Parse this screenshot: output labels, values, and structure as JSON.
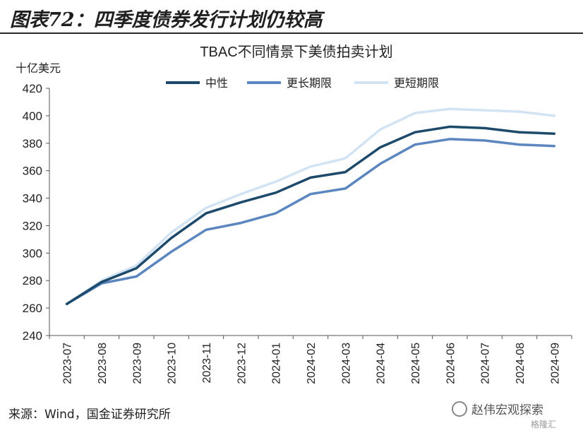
{
  "figure": {
    "title": "图表72：四季度债券发行计划仍较高",
    "source": "来源：Wind，国金证券研究所",
    "watermark": "赵伟宏观探索",
    "watermark_sub": "格隆汇"
  },
  "chart_data": {
    "type": "line",
    "title": "TBAC不同情景下美债拍卖计划",
    "ylabel": "十亿美元",
    "xlabel": "",
    "ylim": [
      240,
      420
    ],
    "yticks": [
      240,
      260,
      280,
      300,
      320,
      340,
      360,
      380,
      400,
      420
    ],
    "grid": false,
    "legend_position": "top",
    "categories": [
      "2023-07",
      "2023-08",
      "2023-09",
      "2023-10",
      "2023-11",
      "2023-12",
      "2024-01",
      "2024-02",
      "2024-03",
      "2024-04",
      "2024-05",
      "2024-06",
      "2024-07",
      "2024-08",
      "2024-09"
    ],
    "series": [
      {
        "name": "中性",
        "color": "#1d4a6b",
        "values": [
          263,
          279,
          289,
          311,
          329,
          337,
          344,
          355,
          359,
          377,
          388,
          392,
          391,
          388,
          387
        ]
      },
      {
        "name": "更长期限",
        "color": "#5b86bf",
        "values": [
          263,
          278,
          283,
          301,
          317,
          322,
          329,
          343,
          347,
          365,
          379,
          383,
          382,
          379,
          378
        ]
      },
      {
        "name": "更短期限",
        "color": "#d2e3f3",
        "values": [
          263,
          280,
          291,
          315,
          333,
          343,
          352,
          363,
          369,
          390,
          402,
          405,
          404,
          403,
          400
        ]
      }
    ]
  }
}
